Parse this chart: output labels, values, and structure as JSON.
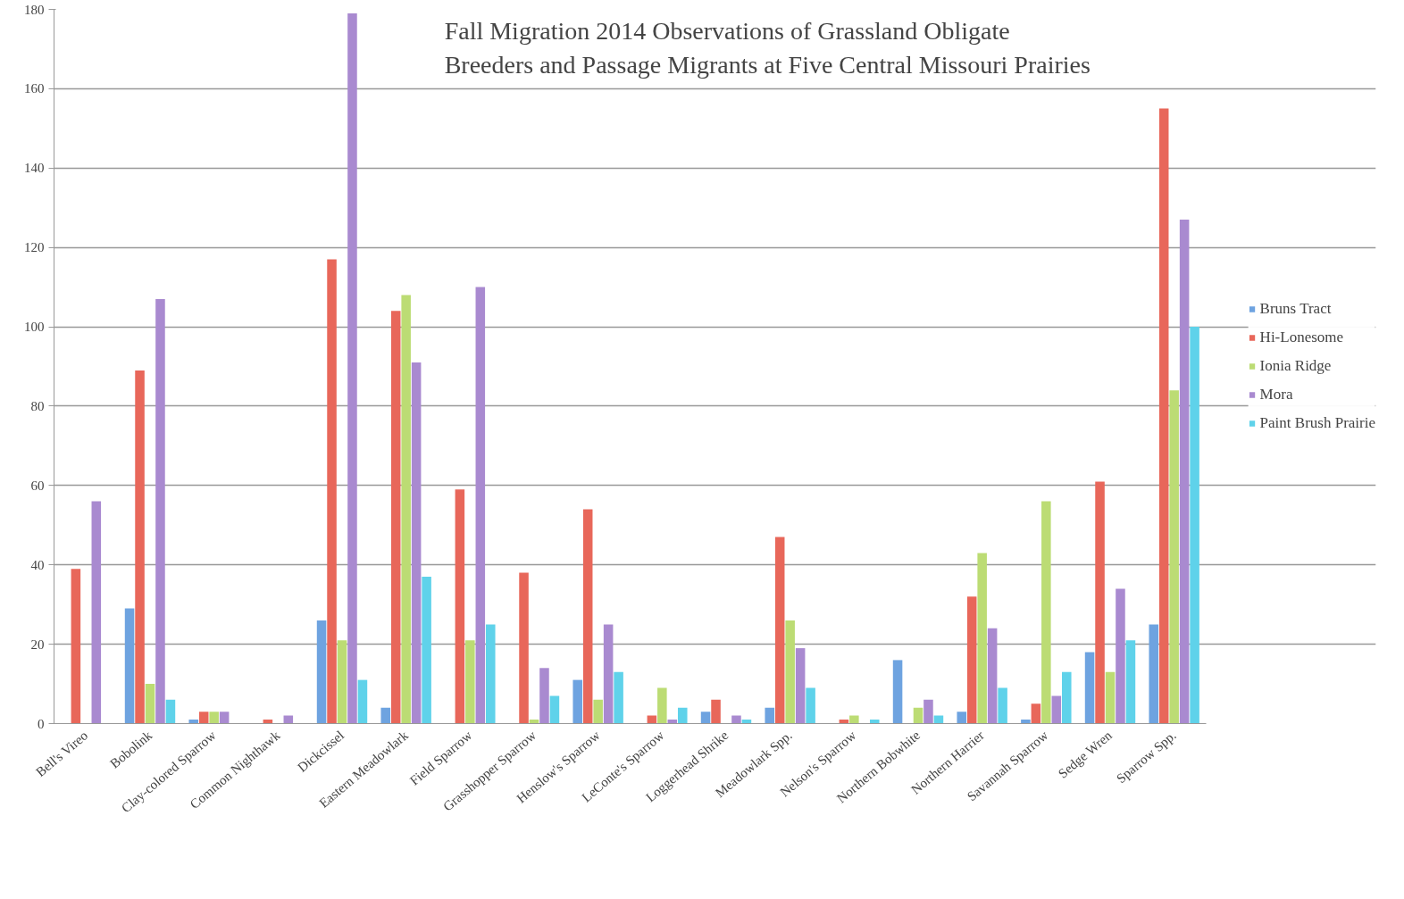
{
  "chart_data": {
    "type": "bar",
    "title": "Fall Migration 2014 Observations of Grassland Obligate\nBreeders and Passage Migrants at Five Central Missouri Prairies",
    "categories": [
      "Bell's Vireo",
      "Bobolink",
      "Clay-colored Sparrow",
      "Common Nighthawk",
      "Dickcissel",
      "Eastern Meadowlark",
      "Field Sparrow",
      "Grasshopper Sparrow",
      "Henslow's Sparrow",
      "LeConte's Sparrow",
      "Loggerhead Shrike",
      "Meadowlark Spp.",
      "Nelson's Sparrow",
      "Northern Bobwhite",
      "Northern Harrier",
      "Savannah Sparrow",
      "Sedge Wren",
      "Sparrow Spp."
    ],
    "series": [
      {
        "name": "Bruns Tract",
        "color": "#6ea3e0",
        "values": [
          0,
          29,
          1,
          0,
          26,
          4,
          0,
          0,
          11,
          0,
          3,
          4,
          0,
          16,
          3,
          1,
          18,
          25
        ]
      },
      {
        "name": "Hi-Lonesome",
        "color": "#e8675a",
        "values": [
          39,
          89,
          3,
          1,
          117,
          104,
          59,
          38,
          54,
          2,
          6,
          47,
          1,
          0,
          32,
          5,
          61,
          155
        ]
      },
      {
        "name": "Ionia Ridge",
        "color": "#bcdc74",
        "values": [
          0,
          10,
          3,
          0,
          21,
          108,
          21,
          1,
          6,
          9,
          0,
          26,
          2,
          4,
          43,
          56,
          13,
          84
        ]
      },
      {
        "name": "Mora",
        "color": "#a98ad0",
        "values": [
          56,
          107,
          3,
          2,
          179,
          91,
          110,
          14,
          25,
          1,
          2,
          19,
          0,
          6,
          24,
          7,
          34,
          127
        ]
      },
      {
        "name": "Paint Brush Prairie",
        "color": "#5fd2ea",
        "values": [
          0,
          6,
          0,
          0,
          11,
          37,
          25,
          7,
          13,
          4,
          1,
          9,
          1,
          2,
          9,
          13,
          21,
          100
        ]
      }
    ],
    "ylim": [
      0,
      180
    ],
    "yticks": [
      0,
      20,
      40,
      60,
      80,
      100,
      120,
      140,
      160,
      180
    ],
    "grid": "y",
    "legend": "right"
  }
}
